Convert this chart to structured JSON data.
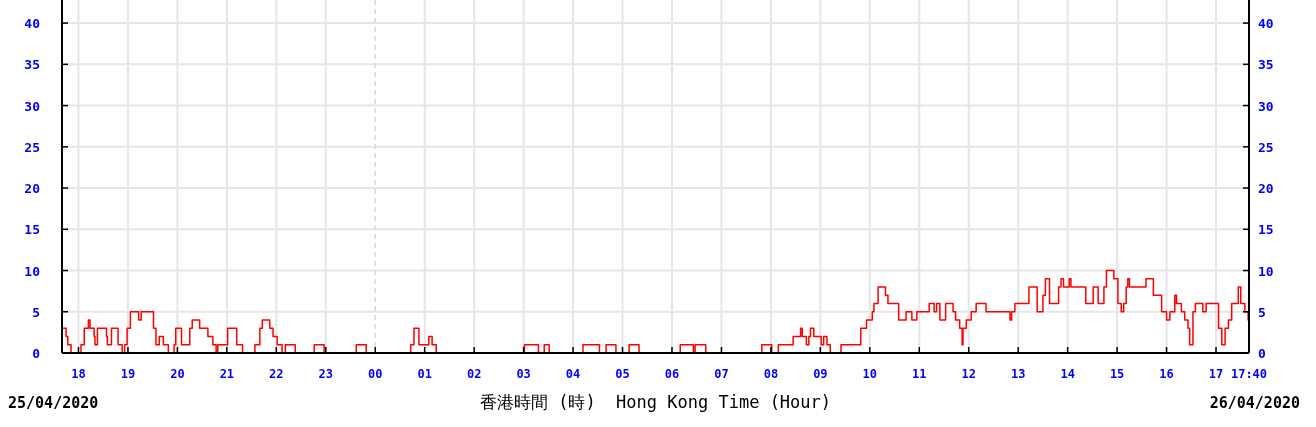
{
  "chart_data": {
    "type": "step",
    "xlabel": "香港時間 (時)  Hong Kong Time (Hour)",
    "annotations": [
      "25/04/2020",
      "26/04/2020"
    ],
    "xlim": [
      "2020-04-25T17:40",
      "2020-04-26T17:40"
    ],
    "ylim": [
      0,
      42.8
    ],
    "y2lim": [
      0,
      42.8
    ],
    "xticks": [
      {
        "value": "2020-04-25T18:00",
        "label": "18"
      },
      {
        "value": "2020-04-25T19:00",
        "label": "19"
      },
      {
        "value": "2020-04-25T20:00",
        "label": "20"
      },
      {
        "value": "2020-04-25T21:00",
        "label": "21"
      },
      {
        "value": "2020-04-25T22:00",
        "label": "22"
      },
      {
        "value": "2020-04-25T23:00",
        "label": "23"
      },
      {
        "value": "2020-04-26T00:00",
        "label": "00"
      },
      {
        "value": "2020-04-26T01:00",
        "label": "01"
      },
      {
        "value": "2020-04-26T02:00",
        "label": "02"
      },
      {
        "value": "2020-04-26T03:00",
        "label": "03"
      },
      {
        "value": "2020-04-26T04:00",
        "label": "04"
      },
      {
        "value": "2020-04-26T05:00",
        "label": "05"
      },
      {
        "value": "2020-04-26T06:00",
        "label": "06"
      },
      {
        "value": "2020-04-26T07:00",
        "label": "07"
      },
      {
        "value": "2020-04-26T08:00",
        "label": "08"
      },
      {
        "value": "2020-04-26T09:00",
        "label": "09"
      },
      {
        "value": "2020-04-26T10:00",
        "label": "10"
      },
      {
        "value": "2020-04-26T11:00",
        "label": "11"
      },
      {
        "value": "2020-04-26T12:00",
        "label": "12"
      },
      {
        "value": "2020-04-26T13:00",
        "label": "13"
      },
      {
        "value": "2020-04-26T14:00",
        "label": "14"
      },
      {
        "value": "2020-04-26T15:00",
        "label": "15"
      },
      {
        "value": "2020-04-26T16:00",
        "label": "16"
      },
      {
        "value": "2020-04-26T17:00",
        "label": "17"
      },
      {
        "value": "2020-04-26T17:40",
        "label": "17:40"
      }
    ],
    "yticks": [
      0,
      5,
      10,
      15,
      20,
      25,
      30,
      35,
      40
    ],
    "y2ticks": [
      0,
      5,
      10,
      15,
      20,
      25,
      30,
      35,
      40
    ],
    "grid": true,
    "ref_lines": [
      {
        "axis": "x",
        "value": "2020-04-26T00:00",
        "color": "#d9d9d9",
        "line_style": "dashed"
      }
    ],
    "series": [
      {
        "color": "#ff0000",
        "x": [
          "2020-04-25T17:41",
          "2020-04-25T17:45",
          "2020-04-25T17:47",
          "2020-04-25T17:51",
          "2020-04-25T18:03",
          "2020-04-25T18:07",
          "2020-04-25T18:12",
          "2020-04-25T18:14",
          "2020-04-25T18:19",
          "2020-04-25T18:20",
          "2020-04-25T18:23",
          "2020-04-25T18:34",
          "2020-04-25T18:35",
          "2020-04-25T18:40",
          "2020-04-25T18:48",
          "2020-04-25T18:53",
          "2020-04-25T18:56",
          "2020-04-25T18:59",
          "2020-04-25T19:03",
          "2020-04-25T19:13",
          "2020-04-25T19:16",
          "2020-04-25T19:31",
          "2020-04-25T19:34",
          "2020-04-25T19:38",
          "2020-04-25T19:43",
          "2020-04-25T19:49",
          "2020-04-25T19:56",
          "2020-04-25T19:58",
          "2020-04-25T20:05",
          "2020-04-25T20:15",
          "2020-04-25T20:18",
          "2020-04-25T20:27",
          "2020-04-25T20:37",
          "2020-04-25T20:43",
          "2020-04-25T20:47",
          "2020-04-25T20:49",
          "2020-04-25T21:01",
          "2020-04-25T21:12",
          "2020-04-25T21:19",
          "2020-04-25T21:34",
          "2020-04-25T21:40",
          "2020-04-25T21:43",
          "2020-04-25T21:52",
          "2020-04-25T21:56",
          "2020-04-25T22:01",
          "2020-04-25T22:07",
          "2020-04-25T22:11",
          "2020-04-25T22:23",
          "2020-04-25T22:46",
          "2020-04-25T22:58",
          "2020-04-25T23:37",
          "2020-04-25T23:49",
          "2020-04-26T00:43",
          "2020-04-26T00:47",
          "2020-04-26T00:53",
          "2020-04-26T01:05",
          "2020-04-26T01:09",
          "2020-04-26T01:14",
          "2020-04-26T03:01",
          "2020-04-26T03:18",
          "2020-04-26T03:25",
          "2020-04-26T03:31",
          "2020-04-26T04:12",
          "2020-04-26T04:32",
          "2020-04-26T04:40",
          "2020-04-26T04:52",
          "2020-04-26T05:08",
          "2020-04-26T05:20",
          "2020-04-26T06:10",
          "2020-04-26T06:26",
          "2020-04-26T06:28",
          "2020-04-26T06:41",
          "2020-04-26T07:49",
          "2020-04-26T08:01",
          "2020-04-26T08:09",
          "2020-04-26T08:27",
          "2020-04-26T08:36",
          "2020-04-26T08:38",
          "2020-04-26T08:43",
          "2020-04-26T08:46",
          "2020-04-26T08:48",
          "2020-04-26T08:52",
          "2020-04-26T09:01",
          "2020-04-26T09:04",
          "2020-04-26T09:08",
          "2020-04-26T09:12",
          "2020-04-26T09:25",
          "2020-04-26T09:49",
          "2020-04-26T09:56",
          "2020-04-26T10:03",
          "2020-04-26T10:05",
          "2020-04-26T10:10",
          "2020-04-26T10:19",
          "2020-04-26T10:22",
          "2020-04-26T10:35",
          "2020-04-26T10:44",
          "2020-04-26T10:51",
          "2020-04-26T10:57",
          "2020-04-26T11:12",
          "2020-04-26T11:18",
          "2020-04-26T11:21",
          "2020-04-26T11:25",
          "2020-04-26T11:32",
          "2020-04-26T11:41",
          "2020-04-26T11:44",
          "2020-04-26T11:49",
          "2020-04-26T11:52",
          "2020-04-26T11:53",
          "2020-04-26T11:57",
          "2020-04-26T12:03",
          "2020-04-26T12:09",
          "2020-04-26T12:21",
          "2020-04-26T12:50",
          "2020-04-26T12:52",
          "2020-04-26T12:56",
          "2020-04-26T13:13",
          "2020-04-26T13:23",
          "2020-04-26T13:30",
          "2020-04-26T13:33",
          "2020-04-26T13:38",
          "2020-04-26T13:49",
          "2020-04-26T13:52",
          "2020-04-26T13:55",
          "2020-04-26T14:02",
          "2020-04-26T14:04",
          "2020-04-26T14:22",
          "2020-04-26T14:31",
          "2020-04-26T14:37",
          "2020-04-26T14:44",
          "2020-04-26T14:47",
          "2020-04-26T14:56",
          "2020-04-26T15:01",
          "2020-04-26T15:05",
          "2020-04-26T15:08",
          "2020-04-26T15:11",
          "2020-04-26T15:13",
          "2020-04-26T15:15",
          "2020-04-26T15:35",
          "2020-04-26T15:44",
          "2020-04-26T15:54",
          "2020-04-26T16:00",
          "2020-04-26T16:04",
          "2020-04-26T16:10",
          "2020-04-26T16:12",
          "2020-04-26T16:18",
          "2020-04-26T16:22",
          "2020-04-26T16:26",
          "2020-04-26T16:28",
          "2020-04-26T16:32",
          "2020-04-26T16:35",
          "2020-04-26T16:44",
          "2020-04-26T16:48",
          "2020-04-26T17:03",
          "2020-04-26T17:07",
          "2020-04-26T17:11",
          "2020-04-26T17:15",
          "2020-04-26T17:19",
          "2020-04-26T17:27",
          "2020-04-26T17:30",
          "2020-04-26T17:35",
          "2020-04-26T17:39"
        ],
        "values": [
          3,
          2,
          1,
          0,
          1,
          3,
          4,
          3,
          2,
          1,
          3,
          2,
          1,
          3,
          1,
          0,
          1,
          3,
          5,
          4,
          5,
          3,
          1,
          2,
          1,
          0,
          1,
          3,
          1,
          3,
          4,
          3,
          2,
          1,
          0,
          1,
          3,
          1,
          0,
          1,
          3,
          4,
          3,
          2,
          1,
          0,
          1,
          0,
          1,
          0,
          1,
          0,
          1,
          3,
          1,
          2,
          1,
          0,
          1,
          0,
          1,
          0,
          1,
          0,
          1,
          0,
          1,
          0,
          1,
          0,
          1,
          0,
          1,
          0,
          1,
          2,
          3,
          2,
          1,
          2,
          3,
          2,
          1,
          2,
          1,
          0,
          1,
          3,
          4,
          5,
          6,
          8,
          7,
          6,
          4,
          5,
          4,
          5,
          6,
          5,
          6,
          4,
          6,
          5,
          4,
          3,
          1,
          3,
          4,
          5,
          6,
          5,
          4,
          5,
          6,
          8,
          5,
          7,
          9,
          6,
          8,
          9,
          8,
          9,
          8,
          6,
          8,
          6,
          8,
          10,
          9,
          6,
          5,
          6,
          8,
          9,
          8,
          9,
          7,
          5,
          4,
          5,
          7,
          6,
          5,
          4,
          3,
          1,
          5,
          6,
          5,
          6,
          3,
          1,
          3,
          4,
          6,
          8,
          6,
          5,
          4
        ]
      }
    ]
  }
}
